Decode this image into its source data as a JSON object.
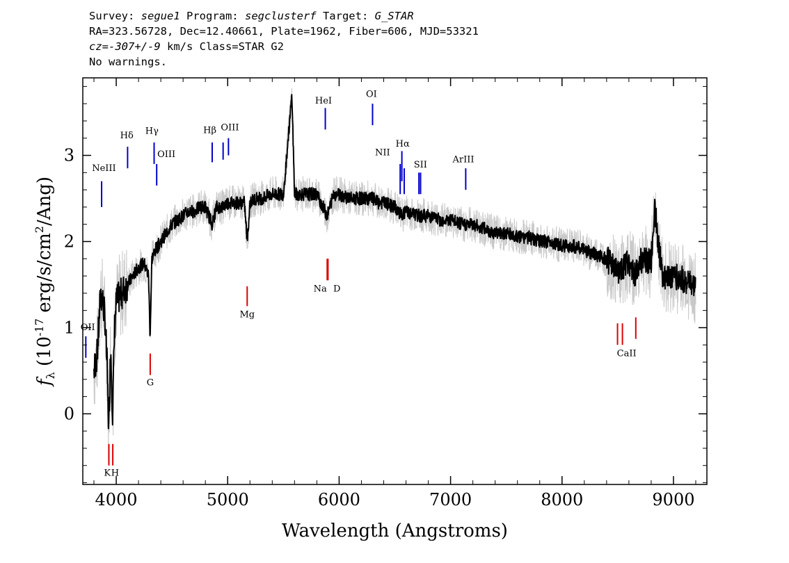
{
  "header": {
    "line1": {
      "survey_label": "Survey: ",
      "survey": "segue1",
      "program_label": " Program: ",
      "program": "segclusterf",
      "target_label": " Target: ",
      "target": "G_STAR"
    },
    "line2": "RA=323.56728, Dec=12.40661, Plate=1962, Fiber=606, MJD=53321",
    "line3": {
      "cz": "cz=-307+/-9",
      "rest": " km/s Class=STAR G2"
    },
    "line4": "No warnings."
  },
  "colors": {
    "spectrum": "#000000",
    "error_band": "#c8c8c8",
    "emission": "#0000cc",
    "absorption": "#dd0000"
  },
  "chart_data": {
    "type": "line",
    "xlabel": "Wavelength (Angstroms)",
    "ylabel": "f_λ (10^-17 erg/s/cm^2/Ang)",
    "ylabel_parts": {
      "f": "f",
      "lam": "λ",
      "pre": " (10",
      "exp1": "-17",
      "mid": " erg/s/cm",
      "exp2": "2",
      "post": "/Ang)"
    },
    "xlim": [
      3700,
      9300
    ],
    "ylim": [
      -0.82,
      3.9
    ],
    "xticks": [
      4000,
      5000,
      6000,
      7000,
      8000,
      9000
    ],
    "yticks": [
      0,
      1,
      2,
      3
    ],
    "xtick_labels": [
      "4000",
      "5000",
      "6000",
      "7000",
      "8000",
      "9000"
    ],
    "ytick_labels": [
      "0",
      "1",
      "2",
      "3"
    ],
    "series": [
      {
        "x": [
          3800,
          3830,
          3860,
          3880,
          3900,
          3920,
          3933,
          3950,
          3968,
          3985,
          4000,
          4050,
          4100,
          4150,
          4200,
          4250,
          4290,
          4304,
          4320,
          4350,
          4400,
          4450,
          4500,
          4550,
          4600,
          4650,
          4700,
          4750,
          4800,
          4861,
          4900,
          4950,
          5000,
          5100,
          5150,
          5175,
          5200,
          5250,
          5300,
          5400,
          5500,
          5577,
          5600,
          5700,
          5800,
          5893,
          5950,
          6000,
          6100,
          6200,
          6300,
          6350,
          6400,
          6500,
          6563,
          6600,
          6700,
          6800,
          6900,
          7000,
          7100,
          7200,
          7300,
          7400,
          7500,
          7600,
          7700,
          7800,
          7900,
          8000,
          8100,
          8200,
          8300,
          8400,
          8498,
          8542,
          8600,
          8662,
          8700,
          8800,
          8830,
          8900,
          9000,
          9100,
          9200
        ],
        "y": [
          0.5,
          0.7,
          1.4,
          1.3,
          1.1,
          0.5,
          -0.2,
          0.8,
          0.0,
          1.0,
          1.3,
          1.4,
          1.5,
          1.6,
          1.7,
          1.75,
          1.6,
          0.9,
          1.8,
          1.9,
          2.0,
          2.1,
          2.2,
          2.25,
          2.3,
          2.35,
          2.35,
          2.4,
          2.4,
          2.2,
          2.4,
          2.4,
          2.45,
          2.45,
          2.45,
          2.0,
          2.45,
          2.5,
          2.5,
          2.55,
          2.55,
          3.7,
          2.55,
          2.55,
          2.55,
          2.3,
          2.55,
          2.55,
          2.5,
          2.5,
          2.5,
          2.45,
          2.45,
          2.4,
          2.3,
          2.35,
          2.3,
          2.3,
          2.25,
          2.25,
          2.2,
          2.2,
          2.15,
          2.1,
          2.1,
          2.05,
          2.05,
          2.0,
          2.0,
          1.95,
          1.95,
          1.9,
          1.85,
          1.8,
          1.65,
          1.7,
          1.75,
          1.6,
          1.8,
          1.75,
          2.4,
          1.6,
          1.6,
          1.55,
          1.45
        ]
      }
    ],
    "emission_lines": [
      {
        "label": "NeIII",
        "x": 3869,
        "y0": 2.4,
        "y1": 2.7,
        "lx": 3890,
        "ly": 2.82
      },
      {
        "label": "Hδ",
        "x": 4102,
        "y0": 2.85,
        "y1": 3.1,
        "lx": 4095,
        "ly": 3.2
      },
      {
        "label": "Hγ",
        "x": 4340,
        "y0": 2.9,
        "y1": 3.15,
        "lx": 4320,
        "ly": 3.25
      },
      {
        "label": "OIII",
        "x": 4363,
        "y0": 2.65,
        "y1": 2.9,
        "lx": 4450,
        "ly": 2.98
      },
      {
        "label": "Hβ",
        "x": 4861,
        "y0": 2.92,
        "y1": 3.15,
        "lx": 4840,
        "ly": 3.26
      },
      {
        "label": "OIII",
        "x": 4959,
        "y0": 2.95,
        "y1": 3.15,
        "lx": 5020,
        "ly": 3.29
      },
      {
        "label": "OIII",
        "x": 5007,
        "y0": 3.0,
        "y1": 3.2,
        "lx": 5007,
        "ly": 3.29
      },
      {
        "label": "HeI",
        "x": 5876,
        "y0": 3.3,
        "y1": 3.55,
        "lx": 5860,
        "ly": 3.6
      },
      {
        "label": "OI",
        "x": 6300,
        "y0": 3.35,
        "y1": 3.6,
        "lx": 6290,
        "ly": 3.68
      },
      {
        "label": "NII",
        "x": 6548,
        "y0": 2.55,
        "y1": 2.9,
        "lx": 6390,
        "ly": 3.0
      },
      {
        "label": "Hα",
        "x": 6563,
        "y0": 2.7,
        "y1": 3.05,
        "lx": 6570,
        "ly": 3.1
      },
      {
        "label": "NII",
        "x": 6584,
        "y0": 2.55,
        "y1": 2.85,
        "lx": 6740,
        "ly": 2.96
      },
      {
        "label": "SII",
        "x": 6716,
        "y0": 2.55,
        "y1": 2.8,
        "lx": 6730,
        "ly": 2.86
      },
      {
        "label": "SII",
        "x": 6731,
        "y0": 2.55,
        "y1": 2.8,
        "lx": 6731,
        "ly": 2.86
      },
      {
        "label": "ArIII",
        "x": 7136,
        "y0": 2.6,
        "y1": 2.85,
        "lx": 7115,
        "ly": 2.92
      },
      {
        "label": "OII",
        "x": 3727,
        "y0": 0.65,
        "y1": 0.9,
        "lx": 3745,
        "ly": 0.97
      }
    ],
    "absorption_lines": [
      {
        "label": "K",
        "x": 3934,
        "y0": -0.6,
        "y1": -0.35,
        "lx": 3920,
        "ly": -0.72
      },
      {
        "label": "H",
        "x": 3969,
        "y0": -0.6,
        "y1": -0.35,
        "lx": 3990,
        "ly": -0.72
      },
      {
        "label": "G",
        "x": 4305,
        "y0": 0.45,
        "y1": 0.7,
        "lx": 4305,
        "ly": 0.33
      },
      {
        "label": "Mg",
        "x": 5175,
        "y0": 1.25,
        "y1": 1.48,
        "lx": 5175,
        "ly": 1.12
      },
      {
        "label": "Na",
        "x": 5893,
        "y0": 1.55,
        "y1": 1.8,
        "lx": 5830,
        "ly": 1.42
      },
      {
        "label": "D",
        "x": 5900,
        "y0": 1.55,
        "y1": 1.8,
        "lx": 5980,
        "ly": 1.42
      },
      {
        "label": "CaII",
        "x": 8498,
        "y0": 0.8,
        "y1": 1.05,
        "lx": 8580,
        "ly": 0.67
      },
      {
        "label": "CaII",
        "x": 8542,
        "y0": 0.8,
        "y1": 1.05,
        "lx": 8542,
        "ly": 0.67
      },
      {
        "label": "CaII",
        "x": 8662,
        "y0": 0.87,
        "y1": 1.12,
        "lx": 8662,
        "ly": 0.67
      }
    ]
  }
}
